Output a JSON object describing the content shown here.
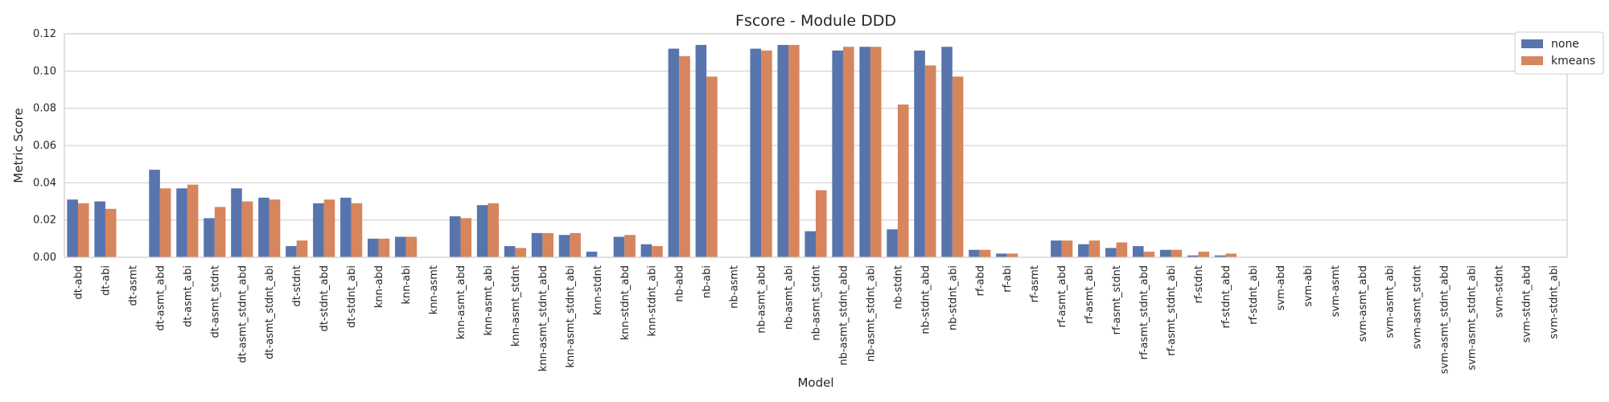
{
  "chart_data": {
    "type": "bar",
    "title": "Fscore - Module DDD",
    "xlabel": "Model",
    "ylabel": "Metric Score",
    "ylim": [
      0,
      0.12
    ],
    "yticks": [
      "0.00",
      "0.02",
      "0.04",
      "0.06",
      "0.08",
      "0.10",
      "0.12"
    ],
    "grid": true,
    "legend_position": "outside-top-right",
    "categories": [
      "dt-abd",
      "dt-abi",
      "dt-asmt",
      "dt-asmt_abd",
      "dt-asmt_abi",
      "dt-asmt_stdnt",
      "dt-asmt_stdnt_abd",
      "dt-asmt_stdnt_abi",
      "dt-stdnt",
      "dt-stdnt_abd",
      "dt-stdnt_abi",
      "knn-abd",
      "knn-abi",
      "knn-asmt",
      "knn-asmt_abd",
      "knn-asmt_abi",
      "knn-asmt_stdnt",
      "knn-asmt_stdnt_abd",
      "knn-asmt_stdnt_abi",
      "knn-stdnt",
      "knn-stdnt_abd",
      "knn-stdnt_abi",
      "nb-abd",
      "nb-abi",
      "nb-asmt",
      "nb-asmt_abd",
      "nb-asmt_abi",
      "nb-asmt_stdnt",
      "nb-asmt_stdnt_abd",
      "nb-asmt_stdnt_abi",
      "nb-stdnt",
      "nb-stdnt_abd",
      "nb-stdnt_abi",
      "rf-abd",
      "rf-abi",
      "rf-asmt",
      "rf-asmt_abd",
      "rf-asmt_abi",
      "rf-asmt_stdnt",
      "rf-asmt_stdnt_abd",
      "rf-asmt_stdnt_abi",
      "rf-stdnt",
      "rf-stdnt_abd",
      "rf-stdnt_abi",
      "svm-abd",
      "svm-abi",
      "svm-asmt",
      "svm-asmt_abd",
      "svm-asmt_abi",
      "svm-asmt_stdnt",
      "svm-asmt_stdnt_abd",
      "svm-asmt_stdnt_abi",
      "svm-stdnt",
      "svm-stdnt_abd",
      "svm-stdnt_abi"
    ],
    "series": [
      {
        "name": "none",
        "color": "#5874ad",
        "values": [
          0.031,
          0.03,
          0.0,
          0.047,
          0.037,
          0.021,
          0.037,
          0.032,
          0.006,
          0.029,
          0.032,
          0.01,
          0.011,
          0.0,
          0.022,
          0.028,
          0.006,
          0.013,
          0.012,
          0.003,
          0.011,
          0.007,
          0.112,
          0.114,
          0.0,
          0.112,
          0.114,
          0.014,
          0.111,
          0.113,
          0.015,
          0.111,
          0.113,
          0.004,
          0.002,
          0.0,
          0.009,
          0.007,
          0.005,
          0.006,
          0.004,
          0.001,
          0.001,
          0.0,
          0.0,
          0.0,
          0.0,
          0.0,
          0.0,
          0.0,
          0.0,
          0.0,
          0.0,
          0.0,
          0.0
        ]
      },
      {
        "name": "kmeans",
        "color": "#d6855d",
        "values": [
          0.029,
          0.026,
          0.0,
          0.037,
          0.039,
          0.027,
          0.03,
          0.031,
          0.009,
          0.031,
          0.029,
          0.01,
          0.011,
          0.0,
          0.021,
          0.029,
          0.005,
          0.013,
          0.013,
          0.0,
          0.012,
          0.006,
          0.108,
          0.097,
          0.0,
          0.111,
          0.114,
          0.036,
          0.113,
          0.113,
          0.082,
          0.103,
          0.097,
          0.004,
          0.002,
          0.0,
          0.009,
          0.009,
          0.008,
          0.003,
          0.004,
          0.003,
          0.002,
          0.0,
          0.0,
          0.0,
          0.0,
          0.0,
          0.0,
          0.0,
          0.0,
          0.0,
          0.0,
          0.0,
          0.0
        ]
      }
    ]
  }
}
